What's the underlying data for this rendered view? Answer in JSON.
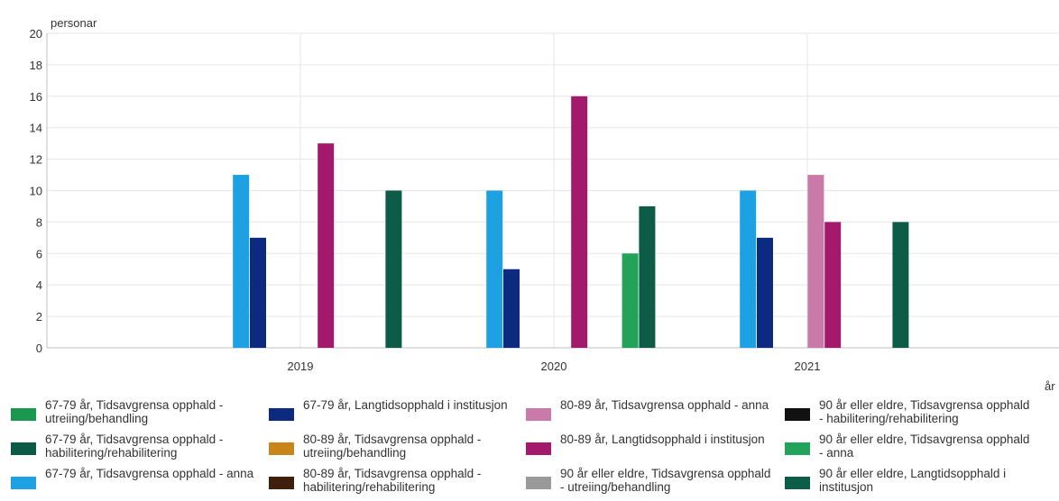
{
  "chart_data": {
    "type": "bar",
    "ylabel": "personar",
    "xlabel": "år",
    "ylim": [
      0,
      20
    ],
    "yticks": [
      "0",
      "2",
      "4",
      "6",
      "8",
      "10",
      "12",
      "14",
      "16",
      "18",
      "20"
    ],
    "categories": [
      "2019",
      "2020",
      "2021"
    ],
    "grid": true,
    "legend_position": "bottom",
    "series": [
      {
        "name": "67-79 år, Tidsavgrensa opphald - utreiing/behandling",
        "color": "#1a9850",
        "values": [
          0,
          0,
          0
        ]
      },
      {
        "name": "67-79 år, Tidsavgrensa opphald - habilitering/rehabilitering",
        "color": "#0b5a45",
        "values": [
          0,
          0,
          0
        ]
      },
      {
        "name": "67-79 år, Tidsavgrensa opphald - anna",
        "color": "#1da1e2",
        "values": [
          11,
          10,
          10
        ]
      },
      {
        "name": "67-79 år, Langtidsopphald i institusjon",
        "color": "#0b2a80",
        "values": [
          7,
          5,
          7
        ]
      },
      {
        "name": "80-89 år, Tidsavgrensa opphald - utreiing/behandling",
        "color": "#c8861a",
        "values": [
          0,
          0,
          0
        ]
      },
      {
        "name": "80-89 år, Tidsavgrensa opphald - habilitering/rehabilitering",
        "color": "#3d1f0b",
        "values": [
          0,
          0,
          0
        ]
      },
      {
        "name": "80-89 år, Tidsavgrensa opphald - anna",
        "color": "#c97aa8",
        "values": [
          0,
          0,
          11
        ]
      },
      {
        "name": "80-89 år, Langtidsopphald i institusjon",
        "color": "#a3196b",
        "values": [
          13,
          16,
          8
        ]
      },
      {
        "name": "90 år eller eldre, Tidsavgrensa opphald - utreiing/behandling",
        "color": "#999999",
        "values": [
          0,
          0,
          0
        ]
      },
      {
        "name": "90 år eller eldre, Tidsavgrensa opphald - habilitering/rehabilitering",
        "color": "#111111",
        "values": [
          0,
          0,
          0
        ]
      },
      {
        "name": "90 år eller eldre, Tidsavgrensa opphald - anna",
        "color": "#23a35a",
        "values": [
          0,
          6,
          0
        ]
      },
      {
        "name": "90 år eller eldre, Langtidsopphald i institusjon",
        "color": "#0d5c48",
        "values": [
          10,
          9,
          8
        ]
      }
    ],
    "legend_grid": [
      [
        0,
        3,
        6,
        9
      ],
      [
        1,
        4,
        7,
        10
      ],
      [
        2,
        5,
        8,
        11
      ]
    ]
  }
}
